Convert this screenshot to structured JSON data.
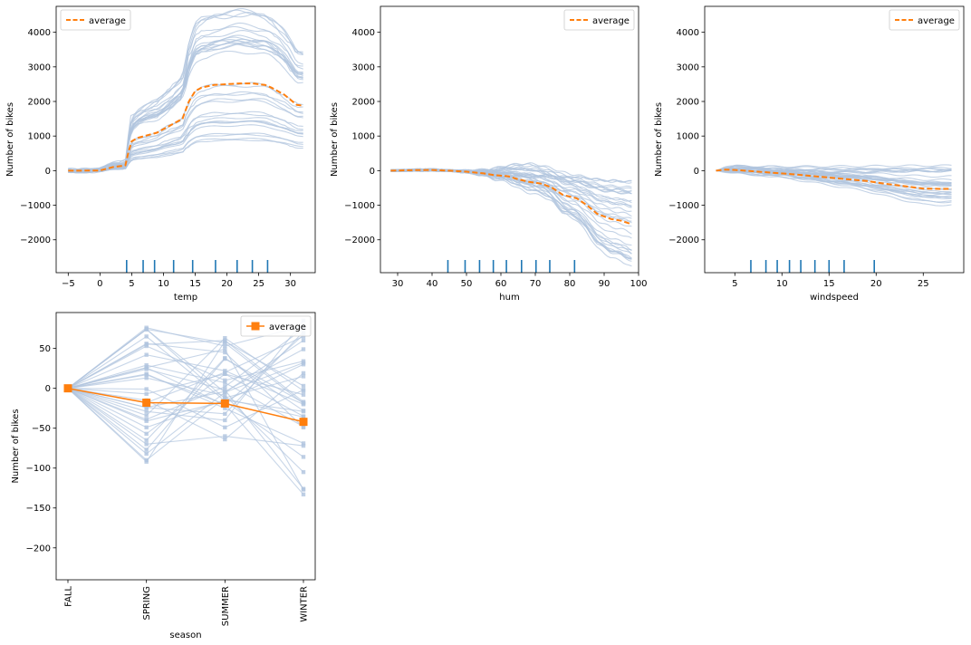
{
  "chart_data": [
    {
      "type": "line",
      "xlabel": "temp",
      "ylabel": "Number of bikes",
      "xlim": [
        -6.9,
        33.9
      ],
      "ylim": [
        -2950,
        4750
      ],
      "xticks": [
        -5,
        0,
        5,
        10,
        15,
        20,
        25,
        30
      ],
      "yticks": [
        -2000,
        -1000,
        0,
        1000,
        2000,
        3000,
        4000
      ],
      "legend": {
        "label": "average",
        "loc": "upper-left"
      },
      "series": [
        {
          "name": "average",
          "x": [
            -5,
            0,
            2,
            4,
            4.5,
            5,
            6,
            7,
            8,
            9,
            10,
            11,
            12,
            13,
            14,
            15,
            16,
            18,
            20,
            22,
            24,
            26,
            27,
            28,
            29,
            30,
            31,
            32
          ],
          "y": [
            0,
            5,
            100,
            150,
            550,
            850,
            950,
            1000,
            1050,
            1100,
            1200,
            1300,
            1400,
            1500,
            2000,
            2300,
            2400,
            2480,
            2500,
            2520,
            2520,
            2480,
            2400,
            2300,
            2200,
            2050,
            1900,
            1880
          ]
        }
      ],
      "rug": [
        4.2,
        6.8,
        8.6,
        11.6,
        14.6,
        18.2,
        21.6,
        24.0,
        26.4
      ]
    },
    {
      "type": "line",
      "xlabel": "hum",
      "ylabel": "Number of bikes",
      "xlim": [
        25,
        100
      ],
      "ylim": [
        -2950,
        4750
      ],
      "xticks": [
        30,
        40,
        50,
        60,
        70,
        80,
        90,
        100
      ],
      "yticks": [
        -2000,
        -1000,
        0,
        1000,
        2000,
        3000,
        4000
      ],
      "legend": {
        "label": "average",
        "loc": "upper-right"
      },
      "series": [
        {
          "name": "average",
          "x": [
            28,
            35,
            40,
            45,
            50,
            55,
            58,
            62,
            65,
            68,
            72,
            75,
            78,
            82,
            85,
            88,
            92,
            95,
            98
          ],
          "y": [
            0,
            15,
            20,
            0,
            -30,
            -80,
            -130,
            -160,
            -250,
            -320,
            -380,
            -500,
            -700,
            -800,
            -1000,
            -1250,
            -1400,
            -1450,
            -1550
          ]
        }
      ],
      "rug": [
        44.6,
        49.6,
        53.8,
        57.8,
        61.6,
        66.0,
        70.2,
        74.2,
        81.4
      ]
    },
    {
      "type": "line",
      "xlabel": "windspeed",
      "ylabel": "Number of bikes",
      "xlim": [
        1.8,
        29.3
      ],
      "ylim": [
        -2950,
        4750
      ],
      "xticks": [
        5,
        10,
        15,
        20,
        25
      ],
      "yticks": [
        -2000,
        -1000,
        0,
        1000,
        2000,
        3000,
        4000
      ],
      "legend": {
        "label": "average",
        "loc": "upper-right"
      },
      "series": [
        {
          "name": "average",
          "x": [
            3,
            4,
            5,
            7,
            9,
            11,
            13,
            15,
            17,
            19,
            21,
            23,
            25,
            28
          ],
          "y": [
            0,
            30,
            20,
            -20,
            -60,
            -100,
            -150,
            -200,
            -250,
            -300,
            -380,
            -450,
            -520,
            -530
          ]
        }
      ],
      "rug": [
        6.7,
        8.3,
        9.5,
        10.8,
        12.0,
        13.5,
        15.0,
        16.6,
        19.8
      ]
    },
    {
      "type": "line",
      "xlabel": "season",
      "ylabel": "Number of bikes",
      "categories": [
        "FALL",
        "SPRING",
        "SUMMER",
        "WINTER"
      ],
      "ylim": [
        -240,
        95
      ],
      "yticks": [
        -200,
        -150,
        -100,
        -50,
        0,
        50
      ],
      "legend": {
        "label": "average",
        "loc": "upper-right"
      },
      "series": [
        {
          "name": "average",
          "values": [
            0,
            -18,
            -19,
            -42
          ]
        }
      ]
    }
  ]
}
